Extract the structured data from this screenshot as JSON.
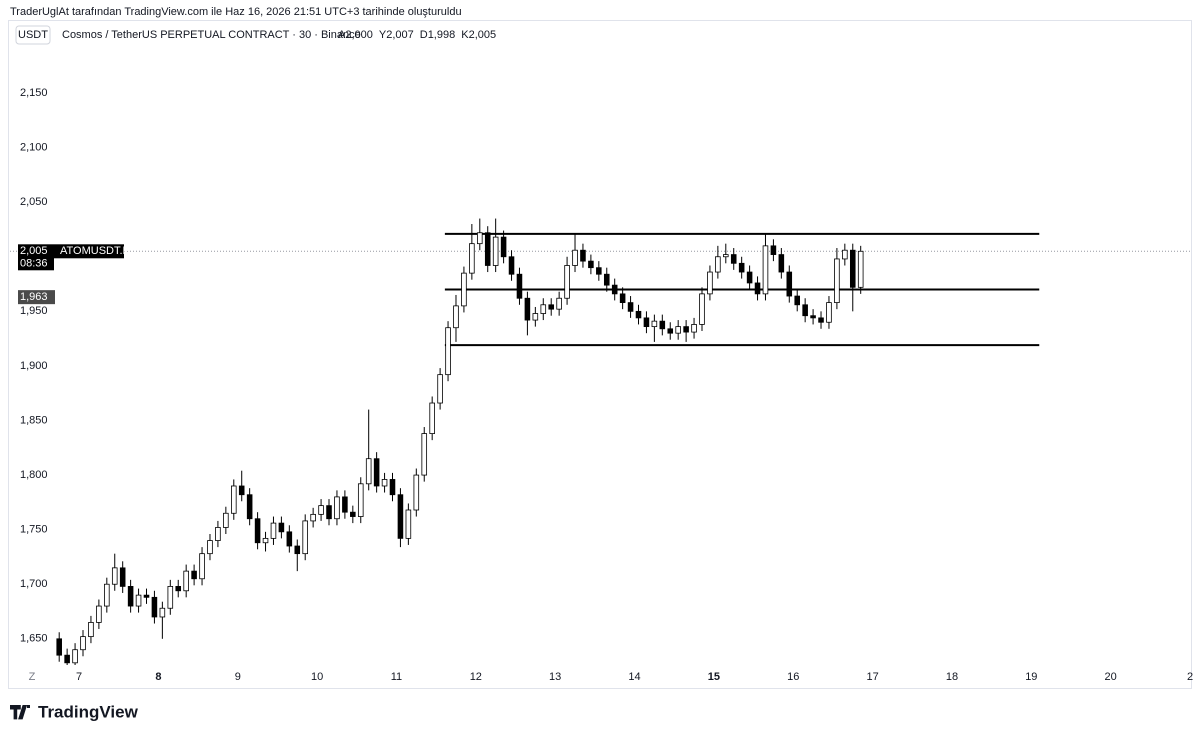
{
  "header": {
    "text": "TraderUglAt tarafından TradingView.com ile Haz 16, 2026 21:51 UTC+3 tarihinde oluşturuldu"
  },
  "chart_data": {
    "type": "candlestick",
    "currency": "USDT",
    "title": "Cosmos / TetherUS PERPETUAL CONTRACT · 30 · Binance",
    "ohlc_labels": [
      "A2,000",
      "Y2,007",
      "D1,998",
      "K2,005"
    ],
    "up_color": "#ffffff",
    "down_color": "#000000",
    "x": [
      6.75,
      6.85,
      6.95,
      7.05,
      7.15,
      7.25,
      7.35,
      7.45,
      7.55,
      7.65,
      7.75,
      7.85,
      7.95,
      8.05,
      8.15,
      8.25,
      8.35,
      8.45,
      8.55,
      8.65,
      8.75,
      8.85,
      8.95,
      9.05,
      9.15,
      9.25,
      9.35,
      9.45,
      9.55,
      9.65,
      9.75,
      9.85,
      9.95,
      10.05,
      10.15,
      10.25,
      10.35,
      10.45,
      10.55,
      10.65,
      10.75,
      10.85,
      10.95,
      11.05,
      11.15,
      11.25,
      11.35,
      11.45,
      11.55,
      11.65,
      11.75,
      11.85,
      11.95,
      12.05,
      12.15,
      12.25,
      12.35,
      12.45,
      12.55,
      12.65,
      12.75,
      12.85,
      12.95,
      13.05,
      13.15,
      13.25,
      13.35,
      13.45,
      13.55,
      13.65,
      13.75,
      13.85,
      13.95,
      14.05,
      14.15,
      14.25,
      14.35,
      14.45,
      14.55,
      14.65,
      14.75,
      14.85,
      14.95,
      15.05,
      15.15,
      15.25,
      15.35,
      15.45,
      15.55,
      15.65,
      15.75,
      15.85,
      15.95,
      16.05,
      16.15,
      16.25,
      16.35,
      16.45,
      16.55,
      16.65,
      16.75,
      16.85
    ],
    "open": [
      1650,
      1635,
      1628,
      1640,
      1652,
      1665,
      1680,
      1700,
      1715,
      1698,
      1680,
      1690,
      1688,
      1670,
      1678,
      1698,
      1694,
      1712,
      1705,
      1728,
      1740,
      1752,
      1765,
      1790,
      1782,
      1760,
      1738,
      1742,
      1756,
      1748,
      1735,
      1728,
      1758,
      1764,
      1772,
      1760,
      1780,
      1766,
      1762,
      1792,
      1815,
      1790,
      1796,
      1782,
      1742,
      1768,
      1800,
      1838,
      1866,
      1892,
      1935,
      1955,
      1985,
      2012,
      2022,
      1992,
      2018,
      2000,
      1984,
      1962,
      1942,
      1948,
      1956,
      1952,
      1962,
      1992,
      2006,
      1996,
      1990,
      1984,
      1974,
      1966,
      1958,
      1950,
      1944,
      1936,
      1941,
      1934,
      1930,
      1936,
      1931,
      1938,
      1966,
      1986,
      2000,
      2002,
      1994,
      1986,
      1976,
      1966,
      2010,
      2002,
      1986,
      1964,
      1956,
      1946,
      1944,
      1940,
      1958,
      1998,
      2006,
      1972
    ],
    "high": [
      1656,
      1641,
      1646,
      1658,
      1671,
      1686,
      1706,
      1728,
      1721,
      1704,
      1696,
      1696,
      1694,
      1684,
      1704,
      1704,
      1718,
      1718,
      1734,
      1746,
      1758,
      1771,
      1796,
      1804,
      1788,
      1766,
      1748,
      1762,
      1762,
      1754,
      1741,
      1764,
      1770,
      1778,
      1778,
      1786,
      1786,
      1772,
      1798,
      1860,
      1821,
      1802,
      1802,
      1788,
      1774,
      1806,
      1844,
      1872,
      1898,
      1941,
      1965,
      1991,
      2030,
      2035,
      2028,
      2035,
      2024,
      2006,
      1990,
      1968,
      1954,
      1962,
      1962,
      1968,
      2000,
      2021,
      2012,
      2002,
      1996,
      1990,
      1980,
      1972,
      1964,
      1956,
      1950,
      1947,
      1947,
      1940,
      1942,
      1942,
      1944,
      1972,
      1992,
      2010,
      2012,
      2008,
      2000,
      1992,
      1982,
      2021,
      2016,
      2008,
      1992,
      1970,
      1962,
      1952,
      1950,
      1964,
      2008,
      2012,
      2012,
      2010
    ],
    "low": [
      1629,
      1622,
      1622,
      1634,
      1646,
      1659,
      1674,
      1694,
      1692,
      1674,
      1674,
      1682,
      1664,
      1650,
      1672,
      1688,
      1688,
      1699,
      1699,
      1722,
      1734,
      1746,
      1759,
      1776,
      1754,
      1732,
      1730,
      1736,
      1742,
      1729,
      1712,
      1722,
      1752,
      1758,
      1754,
      1754,
      1760,
      1756,
      1756,
      1786,
      1784,
      1784,
      1776,
      1734,
      1736,
      1762,
      1794,
      1832,
      1860,
      1886,
      1922,
      1949,
      1979,
      2006,
      1986,
      1986,
      1994,
      1978,
      1956,
      1928,
      1936,
      1942,
      1946,
      1946,
      1956,
      1986,
      1990,
      1984,
      1978,
      1968,
      1960,
      1952,
      1944,
      1938,
      1930,
      1922,
      1928,
      1924,
      1924,
      1922,
      1925,
      1932,
      1960,
      1980,
      1994,
      1988,
      1980,
      1970,
      1960,
      1960,
      1996,
      1980,
      1958,
      1950,
      1940,
      1938,
      1934,
      1934,
      1952,
      1992,
      1950,
      1966
    ],
    "close": [
      1635,
      1628,
      1640,
      1652,
      1665,
      1680,
      1700,
      1715,
      1698,
      1680,
      1690,
      1688,
      1670,
      1678,
      1698,
      1694,
      1712,
      1705,
      1728,
      1740,
      1752,
      1765,
      1790,
      1782,
      1760,
      1738,
      1742,
      1756,
      1748,
      1735,
      1728,
      1758,
      1764,
      1772,
      1760,
      1780,
      1766,
      1762,
      1792,
      1815,
      1790,
      1796,
      1782,
      1742,
      1768,
      1800,
      1838,
      1866,
      1892,
      1935,
      1955,
      1985,
      2012,
      2022,
      1992,
      2018,
      2000,
      1984,
      1962,
      1942,
      1948,
      1956,
      1952,
      1962,
      1992,
      2006,
      1996,
      1990,
      1984,
      1974,
      1966,
      1958,
      1950,
      1944,
      1936,
      1941,
      1934,
      1930,
      1936,
      1931,
      1938,
      1966,
      1986,
      2000,
      2002,
      1994,
      1986,
      1976,
      1966,
      2010,
      2002,
      1986,
      1964,
      1956,
      1946,
      1944,
      1940,
      1958,
      1998,
      2006,
      1972,
      2005
    ],
    "xlim": [
      6.13,
      21.05
    ],
    "xticks": [
      7,
      8,
      9,
      10,
      11,
      12,
      13,
      14,
      15,
      16,
      17,
      18,
      19,
      20,
      {
        "value": 21,
        "label": "2"
      }
    ],
    "bold_xticks": [
      8,
      15
    ],
    "ylim": [
      1626,
      2194
    ],
    "yticks": [
      {
        "value": 1650,
        "label": "1,650"
      },
      {
        "value": 1700,
        "label": "1,700"
      },
      {
        "value": 1750,
        "label": "1,750"
      },
      {
        "value": 1800,
        "label": "1,800"
      },
      {
        "value": 1850,
        "label": "1,850"
      },
      {
        "value": 1900,
        "label": "1,900"
      },
      {
        "value": 1950,
        "label": "1,950"
      },
      {
        "value": 2050,
        "label": "2,050"
      },
      {
        "value": 2100,
        "label": "2,100"
      },
      {
        "value": 2150,
        "label": "2,150"
      }
    ],
    "levels": {
      "values": [
        2021,
        1970,
        1919
      ],
      "x_range": [
        11.61,
        19.1
      ],
      "color": "#000000"
    },
    "last_price": {
      "value": 2005,
      "label": "2,005",
      "symbol": "ATOMUSDT.P",
      "countdown": "08:36"
    },
    "marker_price": {
      "value": 1963,
      "label": "1,963"
    },
    "timezone_label": "Z"
  },
  "footer": {
    "brand": "TradingView"
  }
}
